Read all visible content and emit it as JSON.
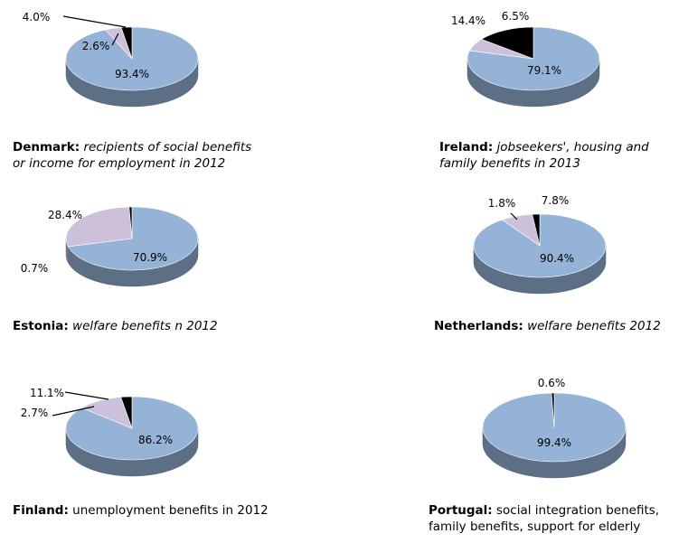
{
  "chart_data": [
    {
      "type": "pie",
      "country": "Denmark:",
      "description_lines": [
        "recipients of social benefits",
        "or income for employment in 2012"
      ],
      "slices": [
        {
          "label": "93.4%",
          "value": 93.4,
          "color": "#95b3d7"
        },
        {
          "label": "4.0%",
          "value": 4.0,
          "color": "#ccc0da"
        },
        {
          "label": "2.6%",
          "value": 2.6,
          "color": "#000000"
        }
      ]
    },
    {
      "type": "pie",
      "country": "Ireland:",
      "description_lines": [
        "jobseekers', housing and",
        "family benefits in 2013"
      ],
      "slices": [
        {
          "label": "79.1%",
          "value": 79.1,
          "color": "#95b3d7"
        },
        {
          "label": "6.5%",
          "value": 6.5,
          "color": "#ccc0da"
        },
        {
          "label": "14.4%",
          "value": 14.4,
          "color": "#000000"
        }
      ]
    },
    {
      "type": "pie",
      "country": "Estonia:",
      "description_lines": [
        "welfare benefits n 2012"
      ],
      "slices": [
        {
          "label": "70.9%",
          "value": 70.9,
          "color": "#95b3d7"
        },
        {
          "label": "28.4%",
          "value": 28.4,
          "color": "#ccc0da"
        },
        {
          "label": "0.7%",
          "value": 0.7,
          "color": "#000000"
        }
      ]
    },
    {
      "type": "pie",
      "country": "Netherlands:",
      "description_lines": [
        "welfare benefits 2012"
      ],
      "slices": [
        {
          "label": "90.4%",
          "value": 90.4,
          "color": "#95b3d7"
        },
        {
          "label": "7.8%",
          "value": 7.8,
          "color": "#ccc0da"
        },
        {
          "label": "1.8%",
          "value": 1.8,
          "color": "#000000"
        }
      ]
    },
    {
      "type": "pie",
      "country": "Finland:",
      "description_lines": [
        "unemployment benefits in 2012"
      ],
      "slices": [
        {
          "label": "86.2%",
          "value": 86.2,
          "color": "#95b3d7"
        },
        {
          "label": "11.1%",
          "value": 11.1,
          "color": "#ccc0da"
        },
        {
          "label": "2.7%",
          "value": 2.7,
          "color": "#000000"
        }
      ]
    },
    {
      "type": "pie",
      "country": "Portugal:",
      "description_lines": [
        "social integration benefits,",
        "family benefits, support for elderly"
      ],
      "slices": [
        {
          "label": "99.4%",
          "value": 99.4,
          "color": "#95b3d7"
        },
        {
          "label": "0.6%",
          "value": 0.6,
          "color": "#000000"
        }
      ]
    }
  ]
}
